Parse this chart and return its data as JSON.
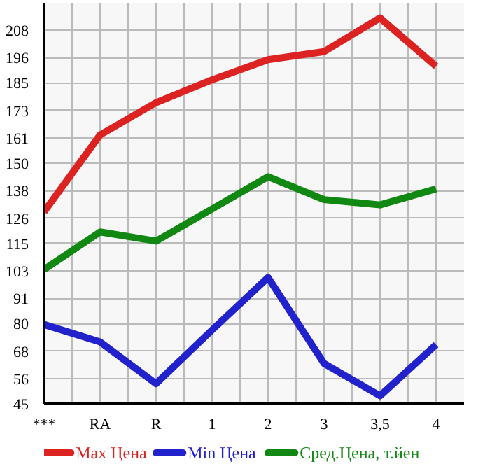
{
  "chart_data": {
    "type": "line",
    "categories": [
      "***",
      "RA",
      "R",
      "1",
      "2",
      "3",
      "3,5",
      "4"
    ],
    "series": [
      {
        "name": "Max Цена",
        "color": "#dd2222",
        "values": [
          128.8,
          162.3,
          176.4,
          186.3,
          195.1,
          198.6,
          213.3,
          192.2
        ]
      },
      {
        "name": "Min Цена",
        "color": "#2222cc",
        "values": [
          79.6,
          72,
          53.8,
          77.2,
          100.1,
          62.6,
          48.5,
          70.8
        ]
      },
      {
        "name": "Сред.Цена, т.йен",
        "color": "#118811",
        "values": [
          103.6,
          120,
          116,
          130,
          144.1,
          134.1,
          131.8,
          138.8
        ]
      }
    ],
    "ylim": [
      45,
      219.6
    ],
    "yticks": [
      45,
      56,
      68,
      80,
      91,
      103,
      115,
      126,
      138,
      150,
      161,
      173,
      185,
      196,
      208
    ],
    "grid": true,
    "legend": "bottom",
    "marker": "none",
    "line_style": "solid"
  }
}
